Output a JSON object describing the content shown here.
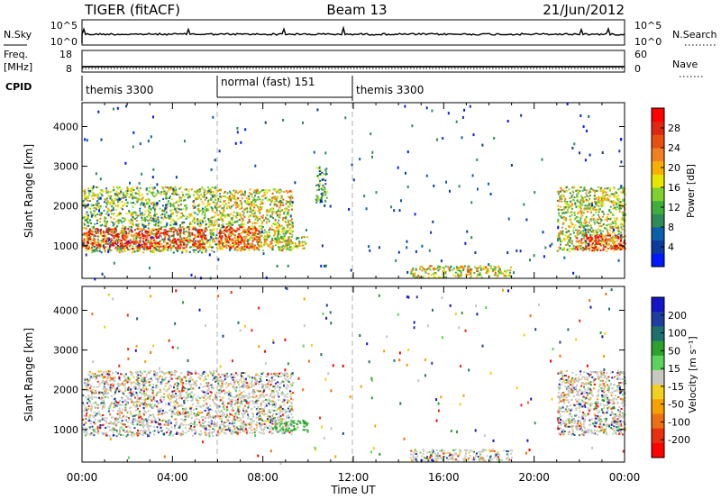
{
  "header": {
    "radar": "TIGER (fitACF)",
    "beam": "Beam 13",
    "date": "21/Jun/2012"
  },
  "nsky_panel": {
    "left_label": "N.Sky",
    "left_ticks": [
      "10^5",
      "10^0"
    ],
    "right_label": "N.Search",
    "right_ticks": [
      "10^5",
      "10^0"
    ]
  },
  "freq_panel": {
    "left_label_1": "Freq.",
    "left_label_2": "[MHz]",
    "left_ticks": [
      "18",
      "8"
    ],
    "right_label": "Nave",
    "right_ticks": [
      "60",
      "0"
    ]
  },
  "cpid": {
    "label": "CPID",
    "segments": [
      {
        "name": "themis 3300",
        "start_hour": 0,
        "end_hour": 6
      },
      {
        "name": "normal (fast) 151",
        "start_hour": 6,
        "end_hour": 12
      },
      {
        "name": "themis 3300",
        "start_hour": 12,
        "end_hour": 24
      }
    ]
  },
  "chart_data": [
    {
      "type": "heatmap",
      "name": "power",
      "ylabel": "Slant Range [km]",
      "yticks": [
        "1000",
        "2000",
        "3000",
        "4000"
      ],
      "ylim": [
        180,
        4600
      ],
      "xlim": [
        0,
        24
      ],
      "colorbar": {
        "label": "Power [dB]",
        "ticks": [
          "4",
          "8",
          "12",
          "16",
          "20",
          "24",
          "28"
        ],
        "colors": [
          "#0018ff",
          "#0e3a9e",
          "#0b5fa8",
          "#2e8b57",
          "#3fae3f",
          "#7fd12e",
          "#e6e600",
          "#f7b000",
          "#f08020",
          "#e85010",
          "#e02810",
          "#ff0000"
        ]
      },
      "echo_regions": [
        {
          "x": [
            0.0,
            6.0
          ],
          "y": [
            850,
            2500
          ],
          "level": 0.45
        },
        {
          "x": [
            0.0,
            5.5
          ],
          "y": [
            950,
            1450
          ],
          "level": 0.9
        },
        {
          "x": [
            6.0,
            9.3
          ],
          "y": [
            900,
            2450
          ],
          "level": 0.55
        },
        {
          "x": [
            6.0,
            7.8
          ],
          "y": [
            950,
            1500
          ],
          "level": 0.85
        },
        {
          "x": [
            8.5,
            10.0
          ],
          "y": [
            950,
            1250
          ],
          "level": 0.5
        },
        {
          "x": [
            10.3,
            10.8
          ],
          "y": [
            2100,
            3000
          ],
          "level": 0.35
        },
        {
          "x": [
            14.5,
            19.0
          ],
          "y": [
            220,
            520
          ],
          "level": 0.55
        },
        {
          "x": [
            21.0,
            24.0
          ],
          "y": [
            880,
            2500
          ],
          "level": 0.5
        },
        {
          "x": [
            21.8,
            24.0
          ],
          "y": [
            900,
            1300
          ],
          "level": 0.85
        }
      ]
    },
    {
      "type": "heatmap",
      "name": "velocity",
      "ylabel": "Slant Range [km]",
      "yticks": [
        "1000",
        "2000",
        "3000",
        "4000"
      ],
      "ylim": [
        180,
        4600
      ],
      "xlim": [
        0,
        24
      ],
      "colorbar": {
        "label": "Velocity [m s⁻¹]",
        "ticks": [
          "200",
          "100",
          "50",
          "15",
          "-15",
          "-50",
          "-100",
          "-200"
        ],
        "colors": [
          "#1515c8",
          "#1f3fa0",
          "#1f6f6f",
          "#2ea02e",
          "#5cd35c",
          "#c8c8c0",
          "#f0d020",
          "#f7a000",
          "#ee7010",
          "#e83010",
          "#ff0000"
        ]
      },
      "echo_regions": [
        {
          "x": [
            0.0,
            6.0
          ],
          "y": [
            850,
            2500
          ],
          "level": 0.5
        },
        {
          "x": [
            6.0,
            9.3
          ],
          "y": [
            900,
            2450
          ],
          "level": 0.5
        },
        {
          "x": [
            8.5,
            10.0
          ],
          "y": [
            950,
            1250
          ],
          "level": 0.3
        },
        {
          "x": [
            14.5,
            19.0
          ],
          "y": [
            220,
            520
          ],
          "level": 0.6
        },
        {
          "x": [
            21.0,
            24.0
          ],
          "y": [
            880,
            2500
          ],
          "level": 0.5
        }
      ]
    }
  ],
  "x_axis": {
    "label": "Time UT",
    "ticks": [
      "00:00",
      "04:00",
      "08:00",
      "12:00",
      "16:00",
      "20:00",
      "00:00"
    ]
  }
}
